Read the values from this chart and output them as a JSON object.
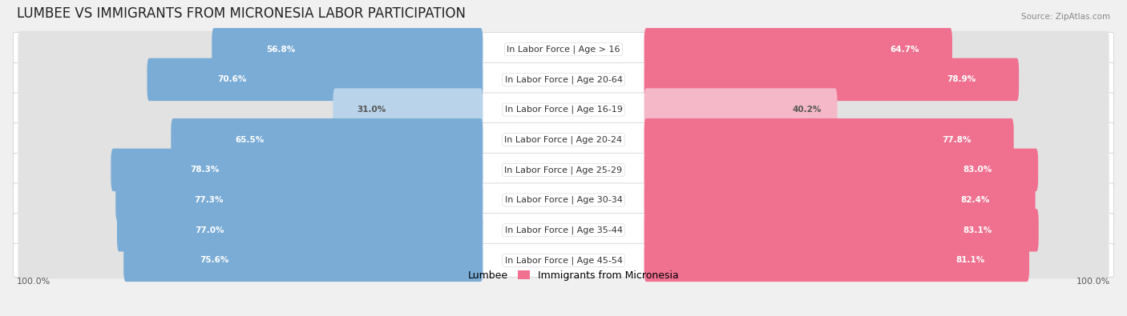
{
  "title": "LUMBEE VS IMMIGRANTS FROM MICRONESIA LABOR PARTICIPATION",
  "source": "Source: ZipAtlas.com",
  "categories": [
    "In Labor Force | Age > 16",
    "In Labor Force | Age 20-64",
    "In Labor Force | Age 16-19",
    "In Labor Force | Age 20-24",
    "In Labor Force | Age 25-29",
    "In Labor Force | Age 30-34",
    "In Labor Force | Age 35-44",
    "In Labor Force | Age 45-54"
  ],
  "lumbee_values": [
    56.8,
    70.6,
    31.0,
    65.5,
    78.3,
    77.3,
    77.0,
    75.6
  ],
  "micronesia_values": [
    64.7,
    78.9,
    40.2,
    77.8,
    83.0,
    82.4,
    83.1,
    81.1
  ],
  "lumbee_color": "#7aacd6",
  "lumbee_color_light": "#b8d3ea",
  "micronesia_color": "#f07090",
  "micronesia_color_light": "#f5b8c8",
  "background_color": "#f0f0f0",
  "bar_bg_color": "#e2e2e2",
  "row_bg_color": "#ffffff",
  "title_fontsize": 12,
  "label_fontsize": 8,
  "value_fontsize": 7.5,
  "legend_fontsize": 9,
  "axis_label_fontsize": 8,
  "legend_lumbee": "Lumbee",
  "legend_micronesia": "Immigrants from Micronesia"
}
